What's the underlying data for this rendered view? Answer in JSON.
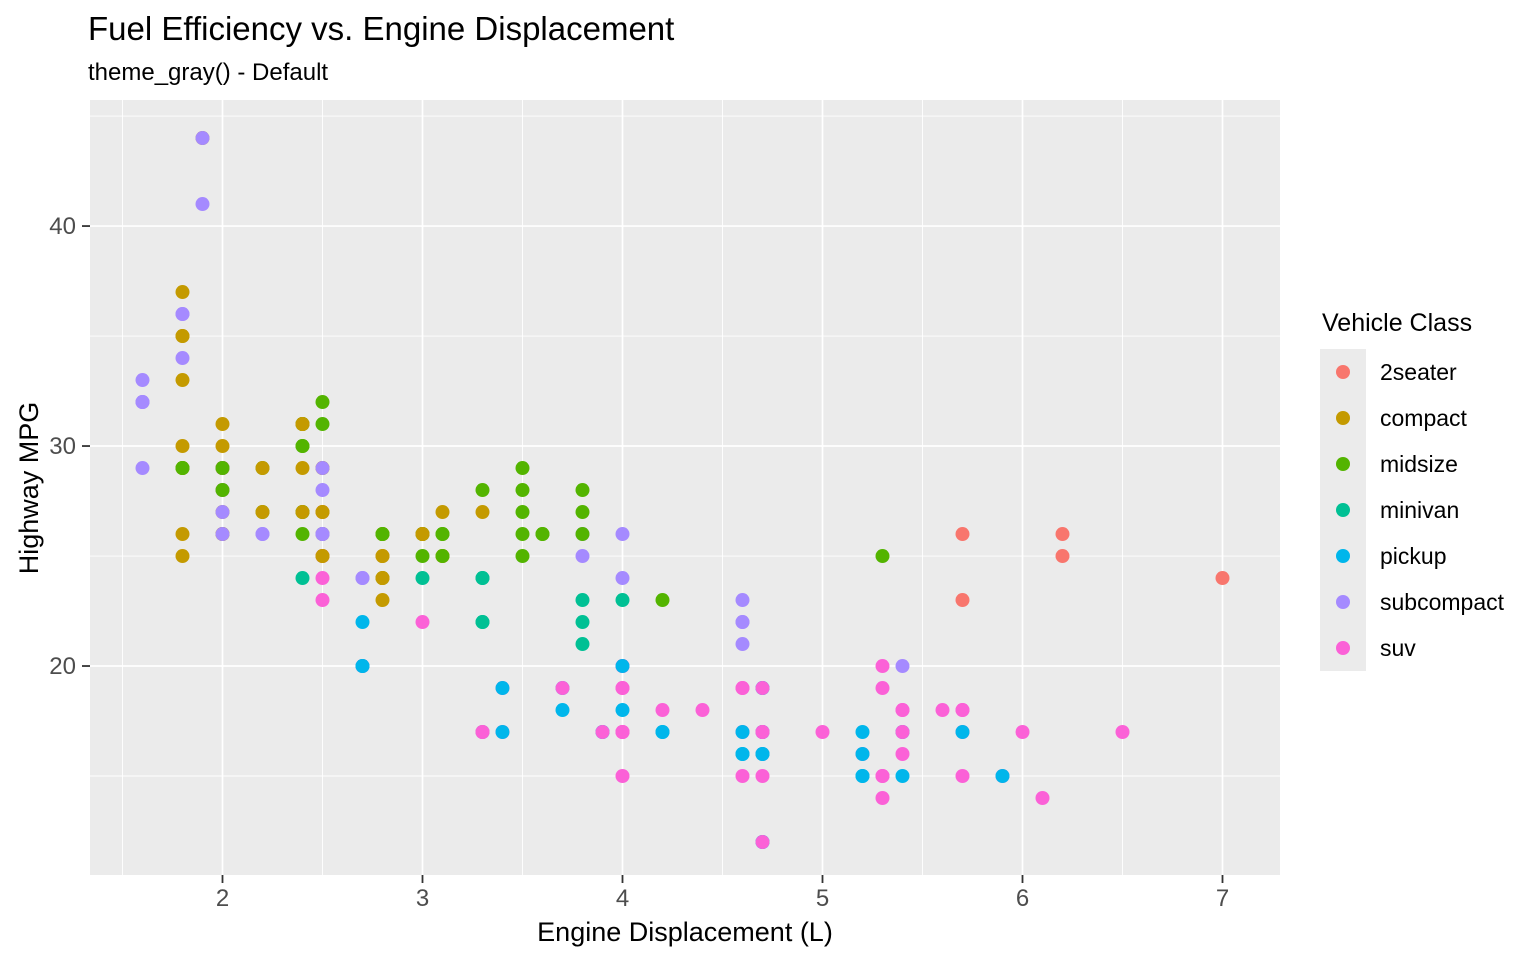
{
  "title": "Fuel Efficiency vs. Engine Displacement",
  "subtitle": "theme_gray() - Default",
  "theme": {
    "panel_bg": "#EBEBEB",
    "grid_color": "#FFFFFF",
    "tick_text_color": "#4D4D4D",
    "tick_mark_color": "#333333",
    "legend_key_bg": "#EBEBEB",
    "background": "#FFFFFF"
  },
  "chart_data": {
    "type": "scatter",
    "title": "Fuel Efficiency vs. Engine Displacement",
    "subtitle": "theme_gray() - Default",
    "xlabel": "Engine Displacement (L)",
    "ylabel": "Highway MPG",
    "legend_title": "Vehicle Class",
    "legend_position": "right",
    "grid": true,
    "xlim": [
      1.3375,
      7.2875
    ],
    "ylim": [
      10.5,
      45.73
    ],
    "x_ticks": [
      2,
      3,
      4,
      5,
      6,
      7
    ],
    "y_ticks": [
      20,
      30,
      40
    ],
    "x_minor_ticks": [
      1.5,
      2.5,
      3.5,
      4.5,
      5.5,
      6.5
    ],
    "y_minor_ticks": [
      15,
      25,
      35,
      45
    ],
    "classes": [
      {
        "label": "2seater",
        "color": "#F8766D"
      },
      {
        "label": "compact",
        "color": "#C49A00"
      },
      {
        "label": "midsize",
        "color": "#53B400"
      },
      {
        "label": "minivan",
        "color": "#00C094"
      },
      {
        "label": "pickup",
        "color": "#00B6EB"
      },
      {
        "label": "subcompact",
        "color": "#A58AFF"
      },
      {
        "label": "suv",
        "color": "#FB61D7"
      }
    ],
    "points": [
      [
        1.8,
        29,
        1
      ],
      [
        1.8,
        29,
        1
      ],
      [
        2.0,
        31,
        1
      ],
      [
        2.0,
        30,
        1
      ],
      [
        2.8,
        26,
        1
      ],
      [
        2.8,
        26,
        1
      ],
      [
        3.1,
        27,
        1
      ],
      [
        1.8,
        26,
        1
      ],
      [
        1.8,
        25,
        1
      ],
      [
        2.0,
        28,
        1
      ],
      [
        2.0,
        27,
        1
      ],
      [
        2.8,
        25,
        1
      ],
      [
        2.8,
        25,
        1
      ],
      [
        3.1,
        25,
        1
      ],
      [
        3.1,
        25,
        1
      ],
      [
        2.8,
        24,
        2
      ],
      [
        3.1,
        25,
        2
      ],
      [
        4.2,
        23,
        2
      ],
      [
        5.3,
        20,
        6
      ],
      [
        5.3,
        19,
        6
      ],
      [
        5.3,
        15,
        6
      ],
      [
        5.7,
        17,
        6
      ],
      [
        6.0,
        17,
        6
      ],
      [
        5.7,
        26,
        0
      ],
      [
        5.7,
        23,
        0
      ],
      [
        6.2,
        26,
        0
      ],
      [
        6.2,
        25,
        0
      ],
      [
        7.0,
        24,
        0
      ],
      [
        5.3,
        14,
        6
      ],
      [
        5.3,
        15,
        6
      ],
      [
        5.7,
        15,
        6
      ],
      [
        6.5,
        17,
        6
      ],
      [
        2.4,
        27,
        2
      ],
      [
        2.4,
        30,
        2
      ],
      [
        3.1,
        26,
        2
      ],
      [
        3.5,
        29,
        2
      ],
      [
        3.6,
        26,
        2
      ],
      [
        2.4,
        24,
        3
      ],
      [
        3.0,
        24,
        3
      ],
      [
        3.3,
        22,
        3
      ],
      [
        3.3,
        22,
        3
      ],
      [
        3.3,
        24,
        3
      ],
      [
        3.3,
        24,
        3
      ],
      [
        3.3,
        17,
        3
      ],
      [
        3.8,
        22,
        3
      ],
      [
        3.8,
        21,
        3
      ],
      [
        3.8,
        23,
        3
      ],
      [
        4.0,
        23,
        3
      ],
      [
        3.7,
        19,
        4
      ],
      [
        3.7,
        18,
        4
      ],
      [
        3.9,
        17,
        4
      ],
      [
        3.9,
        17,
        4
      ],
      [
        4.7,
        19,
        4
      ],
      [
        4.7,
        19,
        4
      ],
      [
        4.7,
        12,
        4
      ],
      [
        5.2,
        17,
        4
      ],
      [
        5.2,
        15,
        4
      ],
      [
        3.9,
        17,
        6
      ],
      [
        4.7,
        17,
        6
      ],
      [
        4.7,
        17,
        6
      ],
      [
        4.7,
        16,
        6
      ],
      [
        5.2,
        16,
        6
      ],
      [
        5.9,
        15,
        6
      ],
      [
        4.7,
        16,
        4
      ],
      [
        4.7,
        17,
        4
      ],
      [
        4.7,
        17,
        4
      ],
      [
        4.7,
        16,
        4
      ],
      [
        4.7,
        12,
        4
      ],
      [
        5.2,
        15,
        4
      ],
      [
        5.2,
        16,
        4
      ],
      [
        5.7,
        17,
        4
      ],
      [
        5.9,
        15,
        4
      ],
      [
        4.6,
        17,
        6
      ],
      [
        5.4,
        17,
        6
      ],
      [
        5.4,
        18,
        6
      ],
      [
        4.0,
        17,
        6
      ],
      [
        4.0,
        17,
        6
      ],
      [
        4.0,
        17,
        6
      ],
      [
        4.0,
        19,
        6
      ],
      [
        4.6,
        19,
        6
      ],
      [
        4.2,
        17,
        4
      ],
      [
        4.2,
        17,
        4
      ],
      [
        4.6,
        16,
        4
      ],
      [
        4.6,
        16,
        4
      ],
      [
        4.6,
        17,
        4
      ],
      [
        5.4,
        15,
        4
      ],
      [
        5.4,
        17,
        4
      ],
      [
        3.8,
        26,
        5
      ],
      [
        3.8,
        25,
        5
      ],
      [
        4.0,
        26,
        5
      ],
      [
        4.0,
        24,
        5
      ],
      [
        4.6,
        21,
        5
      ],
      [
        4.6,
        22,
        5
      ],
      [
        4.6,
        23,
        5
      ],
      [
        4.6,
        22,
        5
      ],
      [
        5.4,
        20,
        5
      ],
      [
        1.6,
        33,
        5
      ],
      [
        1.6,
        32,
        5
      ],
      [
        1.6,
        32,
        5
      ],
      [
        1.6,
        29,
        5
      ],
      [
        1.6,
        32,
        5
      ],
      [
        1.8,
        34,
        5
      ],
      [
        1.8,
        36,
        5
      ],
      [
        1.8,
        36,
        5
      ],
      [
        2.0,
        29,
        5
      ],
      [
        2.4,
        26,
        2
      ],
      [
        2.4,
        27,
        2
      ],
      [
        2.4,
        30,
        2
      ],
      [
        2.4,
        31,
        2
      ],
      [
        2.5,
        26,
        2
      ],
      [
        2.5,
        26,
        2
      ],
      [
        3.3,
        28,
        2
      ],
      [
        2.0,
        26,
        5
      ],
      [
        2.0,
        29,
        5
      ],
      [
        2.0,
        28,
        5
      ],
      [
        2.0,
        27,
        5
      ],
      [
        2.7,
        24,
        5
      ],
      [
        2.7,
        24,
        5
      ],
      [
        3.0,
        22,
        6
      ],
      [
        3.7,
        19,
        6
      ],
      [
        4.0,
        20,
        6
      ],
      [
        4.7,
        17,
        6
      ],
      [
        4.7,
        12,
        6
      ],
      [
        4.7,
        19,
        6
      ],
      [
        5.7,
        18,
        6
      ],
      [
        6.1,
        14,
        6
      ],
      [
        4.0,
        15,
        6
      ],
      [
        4.2,
        18,
        6
      ],
      [
        4.4,
        18,
        6
      ],
      [
        4.6,
        15,
        6
      ],
      [
        5.4,
        17,
        6
      ],
      [
        5.4,
        16,
        6
      ],
      [
        5.4,
        18,
        6
      ],
      [
        4.0,
        17,
        6
      ],
      [
        4.0,
        19,
        6
      ],
      [
        4.6,
        19,
        6
      ],
      [
        5.0,
        17,
        6
      ],
      [
        2.4,
        29,
        1
      ],
      [
        2.4,
        27,
        1
      ],
      [
        2.5,
        31,
        2
      ],
      [
        2.5,
        32,
        2
      ],
      [
        3.5,
        27,
        2
      ],
      [
        3.5,
        26,
        2
      ],
      [
        3.0,
        26,
        2
      ],
      [
        3.0,
        25,
        2
      ],
      [
        3.5,
        25,
        2
      ],
      [
        3.3,
        17,
        6
      ],
      [
        3.3,
        17,
        6
      ],
      [
        4.0,
        20,
        6
      ],
      [
        5.6,
        18,
        6
      ],
      [
        3.1,
        26,
        2
      ],
      [
        3.8,
        26,
        2
      ],
      [
        3.8,
        27,
        2
      ],
      [
        3.8,
        28,
        2
      ],
      [
        5.3,
        25,
        2
      ],
      [
        2.5,
        25,
        6
      ],
      [
        2.5,
        24,
        6
      ],
      [
        2.5,
        27,
        6
      ],
      [
        2.5,
        25,
        6
      ],
      [
        2.5,
        26,
        6
      ],
      [
        2.5,
        23,
        6
      ],
      [
        2.2,
        26,
        5
      ],
      [
        2.2,
        26,
        5
      ],
      [
        2.5,
        26,
        5
      ],
      [
        2.5,
        26,
        5
      ],
      [
        2.5,
        25,
        1
      ],
      [
        2.5,
        27,
        1
      ],
      [
        2.5,
        25,
        1
      ],
      [
        2.5,
        27,
        1
      ],
      [
        2.7,
        20,
        6
      ],
      [
        2.7,
        20,
        6
      ],
      [
        3.4,
        19,
        6
      ],
      [
        3.4,
        17,
        6
      ],
      [
        4.0,
        20,
        6
      ],
      [
        4.7,
        17,
        6
      ],
      [
        2.2,
        29,
        2
      ],
      [
        2.2,
        27,
        2
      ],
      [
        2.4,
        31,
        2
      ],
      [
        2.4,
        31,
        2
      ],
      [
        3.0,
        26,
        2
      ],
      [
        3.0,
        26,
        2
      ],
      [
        3.5,
        28,
        2
      ],
      [
        2.2,
        27,
        1
      ],
      [
        2.2,
        29,
        1
      ],
      [
        2.4,
        31,
        1
      ],
      [
        2.4,
        31,
        1
      ],
      [
        3.0,
        26,
        1
      ],
      [
        3.0,
        26,
        1
      ],
      [
        3.3,
        27,
        1
      ],
      [
        1.8,
        30,
        1
      ],
      [
        1.8,
        33,
        1
      ],
      [
        1.8,
        35,
        1
      ],
      [
        1.8,
        37,
        1
      ],
      [
        1.8,
        35,
        1
      ],
      [
        4.7,
        15,
        6
      ],
      [
        5.7,
        18,
        6
      ],
      [
        2.7,
        20,
        4
      ],
      [
        2.7,
        20,
        4
      ],
      [
        2.7,
        22,
        4
      ],
      [
        3.4,
        19,
        4
      ],
      [
        3.4,
        17,
        4
      ],
      [
        4.0,
        18,
        4
      ],
      [
        4.0,
        20,
        4
      ],
      [
        2.0,
        29,
        1
      ],
      [
        2.0,
        26,
        1
      ],
      [
        2.0,
        29,
        1
      ],
      [
        2.0,
        29,
        1
      ],
      [
        2.8,
        24,
        1
      ],
      [
        1.9,
        44,
        1
      ],
      [
        2.0,
        29,
        1
      ],
      [
        2.0,
        26,
        1
      ],
      [
        2.0,
        29,
        1
      ],
      [
        2.0,
        29,
        1
      ],
      [
        2.5,
        29,
        1
      ],
      [
        2.5,
        29,
        1
      ],
      [
        2.8,
        23,
        1
      ],
      [
        2.8,
        24,
        1
      ],
      [
        1.9,
        44,
        5
      ],
      [
        1.9,
        41,
        5
      ],
      [
        2.0,
        29,
        5
      ],
      [
        2.0,
        26,
        5
      ],
      [
        2.5,
        28,
        5
      ],
      [
        2.5,
        29,
        5
      ],
      [
        1.8,
        29,
        2
      ],
      [
        1.8,
        29,
        2
      ],
      [
        2.0,
        28,
        2
      ],
      [
        2.0,
        29,
        2
      ],
      [
        2.8,
        26,
        2
      ],
      [
        2.8,
        26,
        2
      ],
      [
        3.6,
        26,
        2
      ]
    ]
  }
}
